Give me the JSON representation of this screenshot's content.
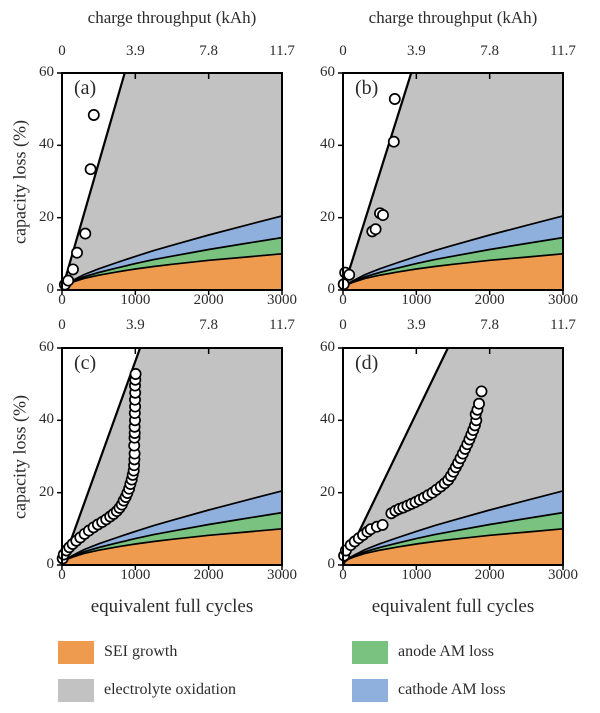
{
  "figure": {
    "top_axis_title": "charge throughput (kAh)",
    "xlabel": "equivalent full cycles",
    "ylabel": "capacity loss (%)",
    "top_ticks": [
      "0",
      "3.9",
      "7.8",
      "11.7"
    ],
    "bottom_ticks": [
      "0",
      "1000",
      "2000",
      "3000"
    ],
    "y_ticks": [
      "60",
      "40",
      "20",
      "0"
    ]
  },
  "colors": {
    "sei": "#EE9B50",
    "electrolyte": "#C2C2C2",
    "anode": "#79C280",
    "cathode": "#8FAFDD",
    "marker_fill": "#FFFFFF",
    "line": "#000000"
  },
  "legend": {
    "items": [
      {
        "label": "SEI growth",
        "color_key": "sei"
      },
      {
        "label": "electrolyte oxidation",
        "color_key": "electrolyte"
      },
      {
        "label": "anode AM loss",
        "color_key": "anode"
      },
      {
        "label": "cathode AM loss",
        "color_key": "cathode"
      }
    ]
  },
  "regions": {
    "description": "stacked degradation-mode boundaries common to all four panels, y = capacity loss (%) vs x = equivalent full cycles",
    "sei_top": [
      [
        0,
        0
      ],
      [
        30,
        1.0
      ],
      [
        80,
        1.7
      ],
      [
        150,
        2.2
      ],
      [
        300,
        3.2
      ],
      [
        500,
        4.1
      ],
      [
        750,
        5.0
      ],
      [
        1000,
        5.8
      ],
      [
        1250,
        6.5
      ],
      [
        1500,
        7.1
      ],
      [
        2000,
        8.2
      ],
      [
        2500,
        9.1
      ],
      [
        3000,
        10.0
      ]
    ],
    "anode_top": [
      [
        0,
        0
      ],
      [
        30,
        1.05
      ],
      [
        80,
        1.8
      ],
      [
        150,
        2.4
      ],
      [
        300,
        3.65
      ],
      [
        500,
        4.85
      ],
      [
        750,
        6.1
      ],
      [
        1000,
        7.3
      ],
      [
        1250,
        8.4
      ],
      [
        1500,
        9.35
      ],
      [
        2000,
        11.2
      ],
      [
        2500,
        12.85
      ],
      [
        3000,
        14.5
      ]
    ],
    "cathode_top": [
      [
        0,
        0
      ],
      [
        30,
        1.1
      ],
      [
        80,
        1.95
      ],
      [
        150,
        2.7
      ],
      [
        300,
        4.25
      ],
      [
        500,
        5.85
      ],
      [
        750,
        7.6
      ],
      [
        1000,
        9.3
      ],
      [
        1250,
        10.9
      ],
      [
        1500,
        12.35
      ],
      [
        2000,
        15.2
      ],
      [
        2500,
        17.85
      ],
      [
        3000,
        20.5
      ]
    ]
  },
  "chart_data": [
    {
      "panel_label": "(a)",
      "type": "scatter",
      "xlabel": "equivalent full cycles",
      "ylabel": "capacity loss (%)",
      "xlim": [
        0,
        3000
      ],
      "ylim": [
        0,
        60
      ],
      "x_ticks": [
        0,
        1000,
        2000,
        3000
      ],
      "y_ticks": [
        0,
        20,
        40,
        60
      ],
      "top_axis": {
        "title": "charge throughput (kAh)",
        "ticks": [
          0,
          3.9,
          7.8,
          11.7
        ]
      },
      "boundary_line": {
        "from": [
          0,
          0
        ],
        "to": [
          855,
          60
        ]
      },
      "points": [
        [
          40,
          1.5
        ],
        [
          85,
          2.6
        ],
        [
          150,
          5.7
        ],
        [
          205,
          10.3
        ],
        [
          318,
          15.6
        ],
        [
          390,
          33.4
        ],
        [
          433,
          48.4
        ]
      ]
    },
    {
      "panel_label": "(b)",
      "type": "scatter",
      "xlabel": "equivalent full cycles",
      "ylabel": "capacity loss (%)",
      "xlim": [
        0,
        3000
      ],
      "ylim": [
        0,
        60
      ],
      "x_ticks": [
        0,
        1000,
        2000,
        3000
      ],
      "y_ticks": [
        0,
        20,
        40,
        60
      ],
      "top_axis": {
        "title": "charge throughput (kAh)",
        "ticks": [
          0,
          3.9,
          7.8,
          11.7
        ]
      },
      "boundary_line": {
        "from": [
          0,
          0
        ],
        "to": [
          930,
          60
        ]
      },
      "points": [
        [
          10,
          1.6
        ],
        [
          30,
          4.8
        ],
        [
          85,
          4.2
        ],
        [
          400,
          16.2
        ],
        [
          445,
          16.8
        ],
        [
          505,
          21.2
        ],
        [
          545,
          20.7
        ],
        [
          693,
          41.0
        ],
        [
          706,
          52.8
        ]
      ]
    },
    {
      "panel_label": "(c)",
      "type": "scatter",
      "xlabel": "equivalent full cycles",
      "ylabel": "capacity loss (%)",
      "xlim": [
        0,
        3000
      ],
      "ylim": [
        0,
        60
      ],
      "x_ticks": [
        0,
        1000,
        2000,
        3000
      ],
      "y_ticks": [
        0,
        20,
        40,
        60
      ],
      "top_axis": {
        "title": "charge throughput (kAh)",
        "ticks": [
          0,
          3.9,
          7.8,
          11.7
        ]
      },
      "boundary_line": {
        "from": [
          0,
          0
        ],
        "to": [
          1065,
          60
        ]
      },
      "points": [
        [
          10,
          1.8
        ],
        [
          25,
          2.9
        ],
        [
          60,
          4.0
        ],
        [
          100,
          4.9
        ],
        [
          145,
          5.8
        ],
        [
          195,
          6.7
        ],
        [
          250,
          7.6
        ],
        [
          308,
          8.6
        ],
        [
          367,
          9.5
        ],
        [
          430,
          10.4
        ],
        [
          489,
          11.2
        ],
        [
          548,
          11.9
        ],
        [
          603,
          12.6
        ],
        [
          657,
          13.4
        ],
        [
          702,
          14.1
        ],
        [
          747,
          14.9
        ],
        [
          784,
          15.8
        ],
        [
          815,
          16.7
        ],
        [
          842,
          17.8
        ],
        [
          869,
          18.8
        ],
        [
          892,
          19.9
        ],
        [
          915,
          21.1
        ],
        [
          933,
          22.4
        ],
        [
          951,
          23.6
        ],
        [
          964,
          24.9
        ],
        [
          978,
          26.1
        ],
        [
          983,
          27.6
        ],
        [
          987,
          29.2
        ],
        [
          990,
          30.8
        ],
        [
          985,
          33.0
        ],
        [
          988,
          35.2
        ],
        [
          992,
          36.5
        ],
        [
          990,
          38.2
        ],
        [
          995,
          40.0
        ],
        [
          993,
          42.0
        ],
        [
          997,
          43.8
        ],
        [
          995,
          45.7
        ],
        [
          998,
          47.6
        ],
        [
          996,
          49.6
        ],
        [
          1000,
          51.2
        ],
        [
          1003,
          52.8
        ]
      ]
    },
    {
      "panel_label": "(d)",
      "type": "scatter",
      "xlabel": "equivalent full cycles",
      "ylabel": "capacity loss (%)",
      "xlim": [
        0,
        3000
      ],
      "ylim": [
        0,
        60
      ],
      "x_ticks": [
        0,
        1000,
        2000,
        3000
      ],
      "y_ticks": [
        0,
        20,
        40,
        60
      ],
      "top_axis": {
        "title": "charge throughput (kAh)",
        "ticks": [
          0,
          3.9,
          7.8,
          11.7
        ]
      },
      "boundary_line": {
        "from": [
          0,
          0
        ],
        "to": [
          1430,
          60
        ]
      },
      "points": [
        [
          15,
          2.6
        ],
        [
          40,
          4.0
        ],
        [
          105,
          5.5
        ],
        [
          160,
          6.5
        ],
        [
          215,
          7.4
        ],
        [
          273,
          8.3
        ],
        [
          333,
          9.2
        ],
        [
          378,
          9.9
        ],
        [
          462,
          10.6
        ],
        [
          540,
          11.1
        ],
        [
          660,
          14.3
        ],
        [
          715,
          15.0
        ],
        [
          768,
          15.5
        ],
        [
          822,
          15.9
        ],
        [
          878,
          16.4
        ],
        [
          933,
          16.9
        ],
        [
          988,
          17.4
        ],
        [
          1046,
          18.0
        ],
        [
          1105,
          18.6
        ],
        [
          1160,
          19.3
        ],
        [
          1220,
          20.0
        ],
        [
          1274,
          20.8
        ],
        [
          1333,
          21.7
        ],
        [
          1387,
          22.6
        ],
        [
          1435,
          23.5
        ],
        [
          1472,
          24.6
        ],
        [
          1505,
          25.8
        ],
        [
          1538,
          27.0
        ],
        [
          1570,
          28.2
        ],
        [
          1602,
          29.5
        ],
        [
          1634,
          30.8
        ],
        [
          1665,
          32.1
        ],
        [
          1695,
          33.4
        ],
        [
          1723,
          34.7
        ],
        [
          1750,
          36.0
        ],
        [
          1775,
          37.3
        ],
        [
          1798,
          38.6
        ],
        [
          1818,
          40.0
        ],
        [
          1810,
          41.7
        ],
        [
          1833,
          42.9
        ],
        [
          1855,
          44.6
        ],
        [
          1888,
          48.0
        ]
      ]
    }
  ]
}
